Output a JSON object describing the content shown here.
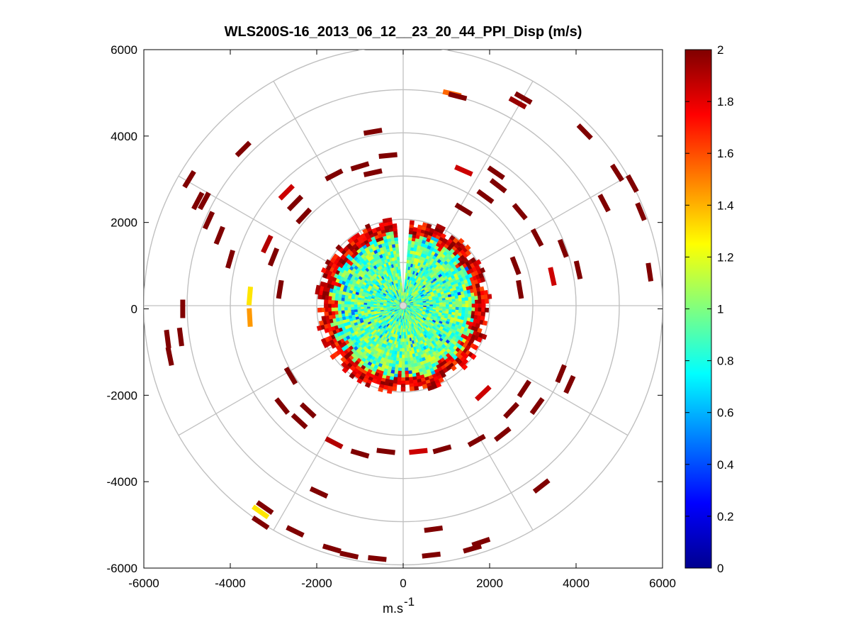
{
  "chart_data": {
    "type": "scatter",
    "plot_style": "polar PPI sector plot with jet colormap",
    "title": "WLS200S-16_2013_06_12__23_20_44_PPI_Disp (m/s)",
    "xlabel_base": "m.s",
    "xlabel_exp": "-1",
    "ylabel": "",
    "xlim": [
      -6000,
      6000
    ],
    "ylim": [
      -6000,
      6000
    ],
    "x_ticks": [
      "-6000",
      "-4000",
      "-2000",
      "0",
      "2000",
      "4000",
      "6000"
    ],
    "y_ticks": [
      "6000",
      "4000",
      "2000",
      "0",
      "-2000",
      "-4000",
      "-6000"
    ],
    "range_rings": [
      1000,
      2000,
      3000,
      4000,
      5000,
      6000
    ],
    "spoke_step_deg": 30,
    "colorbar": {
      "colormap": "jet",
      "clim": [
        0,
        2
      ],
      "ticks": [
        "2",
        "1.8",
        "1.6",
        "1.4",
        "1.2",
        "1",
        "0.8",
        "0.6",
        "0.4",
        "0.2",
        "0"
      ]
    },
    "inner_region": {
      "description": "dense field of gates within ~2000 m radius",
      "dominant_value_range": [
        0.7,
        1.2
      ],
      "edge_value_range": [
        1.6,
        2.0
      ],
      "gap_azimuth_deg": [
        -4,
        4
      ]
    },
    "points": [
      {
        "x": 1130,
        "y": 4980,
        "v": 1.55
      },
      {
        "x": 2650,
        "y": 4770,
        "v": 1.95
      },
      {
        "x": 1260,
        "y": 4920,
        "v": 2.0
      },
      {
        "x": 2780,
        "y": 4880,
        "v": 2.0
      },
      {
        "x": 4200,
        "y": 4100,
        "v": 2.0
      },
      {
        "x": 4950,
        "y": 3150,
        "v": 2.0
      },
      {
        "x": 5300,
        "y": 2900,
        "v": 2.0
      },
      {
        "x": -3700,
        "y": 3700,
        "v": 2.0
      },
      {
        "x": -4950,
        "y": 3000,
        "v": 2.0
      },
      {
        "x": -4600,
        "y": 2500,
        "v": 2.0
      },
      {
        "x": -4750,
        "y": 2500,
        "v": 2.0
      },
      {
        "x": -4500,
        "y": 2050,
        "v": 2.0
      },
      {
        "x": -4250,
        "y": 1700,
        "v": 2.0
      },
      {
        "x": -2700,
        "y": 2700,
        "v": 1.85
      },
      {
        "x": -2500,
        "y": 2450,
        "v": 2.0
      },
      {
        "x": -2300,
        "y": 2150,
        "v": 2.0
      },
      {
        "x": -1600,
        "y": 3100,
        "v": 2.0
      },
      {
        "x": -1000,
        "y": 3300,
        "v": 2.0
      },
      {
        "x": -700,
        "y": 3150,
        "v": 2.0
      },
      {
        "x": -350,
        "y": 3550,
        "v": 2.0
      },
      {
        "x": -700,
        "y": 4100,
        "v": 2.0
      },
      {
        "x": 1400,
        "y": 3200,
        "v": 1.85
      },
      {
        "x": 2150,
        "y": 3150,
        "v": 2.0
      },
      {
        "x": 2200,
        "y": 2850,
        "v": 2.0
      },
      {
        "x": 2700,
        "y": 2250,
        "v": 2.0
      },
      {
        "x": 1900,
        "y": 2600,
        "v": 2.0
      },
      {
        "x": 1400,
        "y": 2300,
        "v": 2.0
      },
      {
        "x": 3100,
        "y": 1650,
        "v": 2.0
      },
      {
        "x": 3700,
        "y": 1400,
        "v": 2.0
      },
      {
        "x": 3450,
        "y": 750,
        "v": 1.85
      },
      {
        "x": 4050,
        "y": 900,
        "v": 2.0
      },
      {
        "x": 5700,
        "y": 850,
        "v": 2.0
      },
      {
        "x": 5500,
        "y": 2250,
        "v": 2.0
      },
      {
        "x": 4650,
        "y": 2450,
        "v": 2.0
      },
      {
        "x": 2600,
        "y": 1000,
        "v": 2.0
      },
      {
        "x": 2700,
        "y": 450,
        "v": 2.0
      },
      {
        "x": -5100,
        "y": 0,
        "v": 2.0
      },
      {
        "x": -4000,
        "y": 1150,
        "v": 2.0
      },
      {
        "x": -3550,
        "y": 300,
        "v": 1.3
      },
      {
        "x": -3550,
        "y": -200,
        "v": 1.45
      },
      {
        "x": -3150,
        "y": 1500,
        "v": 1.9
      },
      {
        "x": -3000,
        "y": 1200,
        "v": 2.0
      },
      {
        "x": -2850,
        "y": 450,
        "v": 2.0
      },
      {
        "x": -5150,
        "y": -650,
        "v": 2.0
      },
      {
        "x": -5400,
        "y": -1100,
        "v": 2.0
      },
      {
        "x": -2600,
        "y": -1550,
        "v": 2.0
      },
      {
        "x": -2800,
        "y": -2250,
        "v": 2.0
      },
      {
        "x": -2200,
        "y": -2350,
        "v": 2.0
      },
      {
        "x": -2400,
        "y": -2600,
        "v": 2.0
      },
      {
        "x": -1600,
        "y": -3100,
        "v": 1.9
      },
      {
        "x": -1000,
        "y": -3350,
        "v": 2.0
      },
      {
        "x": -400,
        "y": -3300,
        "v": 2.0
      },
      {
        "x": 350,
        "y": -3300,
        "v": 1.85
      },
      {
        "x": 900,
        "y": -3250,
        "v": 2.0
      },
      {
        "x": 1700,
        "y": -3050,
        "v": 2.0
      },
      {
        "x": 2300,
        "y": -2900,
        "v": 2.0
      },
      {
        "x": 2500,
        "y": -2350,
        "v": 2.0
      },
      {
        "x": 3100,
        "y": -2250,
        "v": 2.0
      },
      {
        "x": 3850,
        "y": -1750,
        "v": 2.0
      },
      {
        "x": 3650,
        "y": -1500,
        "v": 2.0
      },
      {
        "x": 2800,
        "y": -1850,
        "v": 2.0
      },
      {
        "x": 1850,
        "y": -1950,
        "v": 1.85
      },
      {
        "x": 3200,
        "y": -4100,
        "v": 2.0
      },
      {
        "x": -3300,
        "y": -4700,
        "v": 1.3
      },
      {
        "x": -3300,
        "y": -4950,
        "v": 2.0
      },
      {
        "x": -2500,
        "y": -5150,
        "v": 2.0
      },
      {
        "x": -1650,
        "y": -5550,
        "v": 2.0
      },
      {
        "x": -1250,
        "y": -5700,
        "v": 2.0
      },
      {
        "x": -600,
        "y": -5780,
        "v": 2.0
      },
      {
        "x": 650,
        "y": -5700,
        "v": 2.0
      },
      {
        "x": 1600,
        "y": -5550,
        "v": 2.0
      },
      {
        "x": 1800,
        "y": -5400,
        "v": 2.0
      },
      {
        "x": 700,
        "y": -5100,
        "v": 2.0
      },
      {
        "x": -1950,
        "y": -4250,
        "v": 2.0
      },
      {
        "x": -3200,
        "y": -4600,
        "v": 2.0
      },
      {
        "x": -5450,
        "y": -700,
        "v": 2.0
      }
    ]
  }
}
